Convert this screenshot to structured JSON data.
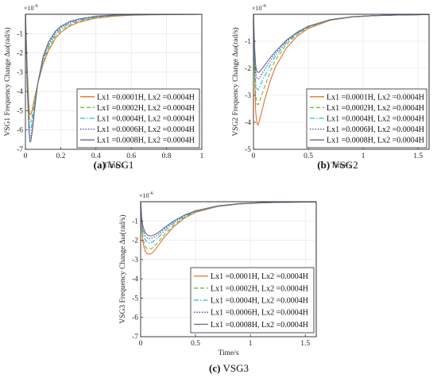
{
  "chart_data": [
    {
      "type": "line",
      "caption_letter": "(a)",
      "caption_text": "VSG1",
      "ylabel": "VSG1 Frequency Change Δω(rad/s)",
      "xlabel": "Time/s",
      "multiplier": "×10",
      "multiplier_exp": "-6",
      "xlim": [
        0,
        1
      ],
      "ylim": [
        -7,
        0
      ],
      "xticks": [
        "0",
        "0.2",
        "0.4",
        "0.6",
        "0.8",
        "1"
      ],
      "yticks": [
        "-1",
        "-2",
        "-3",
        "-4",
        "-5",
        "-6",
        "-7"
      ],
      "grid": true,
      "legend_position": "bottom-right",
      "series": [
        {
          "name": "Lx1 =0.0001H, Lx2 =0.0004H",
          "color": "#e8702a",
          "dash": "",
          "x": [
            0,
            0.01,
            0.02,
            0.025,
            0.03,
            0.04,
            0.05,
            0.07,
            0.1,
            0.13,
            0.17,
            0.2,
            0.25,
            0.3,
            0.4,
            0.5,
            0.6,
            0.7,
            0.8,
            1.0
          ],
          "y": [
            0,
            -2.7,
            -4.7,
            -5.2,
            -5.2,
            -4.9,
            -4.4,
            -3.6,
            -2.6,
            -1.9,
            -1.25,
            -0.95,
            -0.62,
            -0.42,
            -0.2,
            -0.1,
            -0.05,
            -0.03,
            -0.02,
            0
          ]
        },
        {
          "name": "Lx1 =0.0002H, Lx2 =0.0004H",
          "color": "#6fb83a",
          "dash": "5,3",
          "x": [
            0,
            0.01,
            0.02,
            0.025,
            0.03,
            0.04,
            0.05,
            0.07,
            0.1,
            0.13,
            0.17,
            0.2,
            0.25,
            0.3,
            0.4,
            0.5,
            0.6,
            0.7,
            0.8,
            1.0
          ],
          "y": [
            0,
            -3.0,
            -5.1,
            -5.6,
            -5.6,
            -5.2,
            -4.6,
            -3.6,
            -2.5,
            -1.8,
            -1.15,
            -0.85,
            -0.55,
            -0.37,
            -0.17,
            -0.08,
            -0.04,
            -0.02,
            -0.01,
            0
          ]
        },
        {
          "name": "Lx1 =0.0004H, Lx2 =0.0004H",
          "color": "#2bb6d6",
          "dash": "6,2,1.5,2",
          "x": [
            0,
            0.01,
            0.02,
            0.025,
            0.03,
            0.04,
            0.05,
            0.07,
            0.1,
            0.13,
            0.17,
            0.2,
            0.25,
            0.3,
            0.4,
            0.5,
            0.6,
            0.7,
            0.8,
            1.0
          ],
          "y": [
            0,
            -3.3,
            -5.5,
            -6.0,
            -6.0,
            -5.5,
            -4.8,
            -3.6,
            -2.4,
            -1.65,
            -1.05,
            -0.75,
            -0.48,
            -0.32,
            -0.14,
            -0.06,
            -0.03,
            -0.015,
            -0.01,
            0
          ]
        },
        {
          "name": "Lx1 =0.0006H, Lx2 =0.0004H",
          "color": "#3e3ea8",
          "dash": "1.5,1.8",
          "x": [
            0,
            0.01,
            0.02,
            0.025,
            0.03,
            0.04,
            0.05,
            0.07,
            0.1,
            0.13,
            0.17,
            0.2,
            0.25,
            0.3,
            0.4,
            0.5,
            0.6,
            0.7,
            0.8,
            1.0
          ],
          "y": [
            0,
            -3.5,
            -5.8,
            -6.4,
            -6.4,
            -5.8,
            -5.0,
            -3.6,
            -2.3,
            -1.55,
            -0.95,
            -0.68,
            -0.42,
            -0.28,
            -0.12,
            -0.05,
            -0.025,
            -0.012,
            -0.008,
            0
          ]
        },
        {
          "name": "Lx1 =0.0008H, Lx2 =0.0004H",
          "color": "#6a6a8a",
          "dash": "",
          "x": [
            0,
            0.01,
            0.02,
            0.025,
            0.03,
            0.04,
            0.05,
            0.07,
            0.1,
            0.13,
            0.17,
            0.2,
            0.25,
            0.3,
            0.4,
            0.5,
            0.6,
            0.7,
            0.8,
            1.0
          ],
          "y": [
            0,
            -3.7,
            -6.0,
            -6.6,
            -6.6,
            -6.0,
            -5.1,
            -3.6,
            -2.2,
            -1.45,
            -0.88,
            -0.62,
            -0.38,
            -0.25,
            -0.1,
            -0.04,
            -0.02,
            -0.01,
            -0.005,
            0
          ]
        }
      ]
    },
    {
      "type": "line",
      "caption_letter": "(b)",
      "caption_text": "VSG2",
      "ylabel": "VSG2 Frequency Change Δω(rad/s)",
      "xlabel": "Time/s",
      "multiplier": "×10",
      "multiplier_exp": "-6",
      "xlim": [
        0,
        1.6
      ],
      "ylim": [
        -5,
        0
      ],
      "xticks": [
        "0",
        "0.5",
        "1",
        "1.5"
      ],
      "yticks": [
        "-1",
        "-2",
        "-3",
        "-4",
        "-5"
      ],
      "grid": true,
      "legend_position": "bottom-right",
      "series": [
        {
          "name": "Lx1 =0.0001H, Lx2 =0.0004H",
          "color": "#e8702a",
          "dash": "",
          "x": [
            0,
            0.01,
            0.02,
            0.03,
            0.04,
            0.05,
            0.07,
            0.1,
            0.15,
            0.2,
            0.3,
            0.4,
            0.5,
            0.7,
            0.9,
            1.1,
            1.3,
            1.6
          ],
          "y": [
            0,
            -2.2,
            -3.6,
            -4.0,
            -4.1,
            -4.0,
            -3.7,
            -3.2,
            -2.5,
            -1.95,
            -1.25,
            -0.8,
            -0.52,
            -0.22,
            -0.1,
            -0.05,
            -0.03,
            -0.01
          ]
        },
        {
          "name": "Lx1 =0.0002H, Lx2 =0.0004H",
          "color": "#6fb83a",
          "dash": "5,3",
          "x": [
            0,
            0.01,
            0.02,
            0.03,
            0.04,
            0.05,
            0.07,
            0.1,
            0.15,
            0.2,
            0.3,
            0.4,
            0.5,
            0.7,
            0.9,
            1.1,
            1.3,
            1.6
          ],
          "y": [
            0,
            -1.9,
            -3.0,
            -3.3,
            -3.35,
            -3.3,
            -3.05,
            -2.7,
            -2.15,
            -1.7,
            -1.12,
            -0.74,
            -0.48,
            -0.21,
            -0.09,
            -0.05,
            -0.03,
            -0.01
          ]
        },
        {
          "name": "Lx1 =0.0004H, Lx2 =0.0004H",
          "color": "#2bb6d6",
          "dash": "6,2,1.5,2",
          "x": [
            0,
            0.01,
            0.02,
            0.03,
            0.04,
            0.05,
            0.07,
            0.1,
            0.15,
            0.2,
            0.3,
            0.4,
            0.5,
            0.7,
            0.9,
            1.1,
            1.3,
            1.6
          ],
          "y": [
            0,
            -1.6,
            -2.5,
            -2.75,
            -2.8,
            -2.75,
            -2.55,
            -2.3,
            -1.9,
            -1.55,
            -1.05,
            -0.7,
            -0.46,
            -0.2,
            -0.09,
            -0.05,
            -0.03,
            -0.01
          ]
        },
        {
          "name": "Lx1 =0.0006H, Lx2 =0.0004H",
          "color": "#3e3ea8",
          "dash": "1.5,1.8",
          "x": [
            0,
            0.01,
            0.02,
            0.03,
            0.04,
            0.05,
            0.07,
            0.1,
            0.15,
            0.2,
            0.3,
            0.4,
            0.5,
            0.7,
            0.9,
            1.1,
            1.3,
            1.6
          ],
          "y": [
            0,
            -1.4,
            -2.15,
            -2.35,
            -2.4,
            -2.38,
            -2.25,
            -2.05,
            -1.75,
            -1.45,
            -1.0,
            -0.68,
            -0.45,
            -0.2,
            -0.09,
            -0.05,
            -0.03,
            -0.01
          ]
        },
        {
          "name": "Lx1 =0.0008H, Lx2 =0.0004H",
          "color": "#6a6a8a",
          "dash": "",
          "x": [
            0,
            0.01,
            0.02,
            0.03,
            0.04,
            0.05,
            0.07,
            0.1,
            0.15,
            0.2,
            0.3,
            0.4,
            0.5,
            0.7,
            0.9,
            1.1,
            1.3,
            1.6
          ],
          "y": [
            0,
            -1.2,
            -1.9,
            -2.1,
            -2.15,
            -2.15,
            -2.05,
            -1.9,
            -1.62,
            -1.38,
            -0.96,
            -0.66,
            -0.44,
            -0.2,
            -0.09,
            -0.05,
            -0.03,
            -0.01
          ]
        }
      ]
    },
    {
      "type": "line",
      "caption_letter": "(c)",
      "caption_text": "VSG3",
      "ylabel": "VSG3 Frequency Change Δω(rad/s)",
      "xlabel": "Time/s",
      "multiplier": "×10",
      "multiplier_exp": "-6",
      "xlim": [
        0,
        1.6
      ],
      "ylim": [
        -7,
        0
      ],
      "xticks": [
        "0",
        "0.5",
        "1",
        "1.5"
      ],
      "yticks": [
        "-1",
        "-2",
        "-3",
        "-4",
        "-5",
        "-6",
        "-7"
      ],
      "grid": true,
      "legend_position": "bottom-right",
      "series": [
        {
          "name": "Lx1 =0.0001H, Lx2 =0.0004H",
          "color": "#e8702a",
          "dash": "",
          "x": [
            0,
            0.01,
            0.02,
            0.04,
            0.06,
            0.08,
            0.1,
            0.13,
            0.17,
            0.2,
            0.3,
            0.4,
            0.5,
            0.7,
            0.9,
            1.1,
            1.3,
            1.6
          ],
          "y": [
            0,
            -1.5,
            -2.1,
            -2.55,
            -2.7,
            -2.72,
            -2.68,
            -2.5,
            -2.2,
            -1.95,
            -1.3,
            -0.85,
            -0.55,
            -0.25,
            -0.12,
            -0.06,
            -0.03,
            -0.01
          ]
        },
        {
          "name": "Lx1 =0.0002H, Lx2 =0.0004H",
          "color": "#6fb83a",
          "dash": "5,3",
          "x": [
            0,
            0.01,
            0.02,
            0.04,
            0.06,
            0.08,
            0.1,
            0.13,
            0.17,
            0.2,
            0.3,
            0.4,
            0.5,
            0.7,
            0.9,
            1.1,
            1.3,
            1.6
          ],
          "y": [
            0,
            -1.35,
            -1.9,
            -2.3,
            -2.45,
            -2.47,
            -2.43,
            -2.28,
            -2.02,
            -1.8,
            -1.22,
            -0.8,
            -0.52,
            -0.24,
            -0.11,
            -0.05,
            -0.03,
            -0.01
          ]
        },
        {
          "name": "Lx1 =0.0004H, Lx2 =0.0004H",
          "color": "#2bb6d6",
          "dash": "6,2,1.5,2",
          "x": [
            0,
            0.01,
            0.02,
            0.04,
            0.06,
            0.08,
            0.1,
            0.13,
            0.17,
            0.2,
            0.3,
            0.4,
            0.5,
            0.7,
            0.9,
            1.1,
            1.3,
            1.6
          ],
          "y": [
            0,
            -1.1,
            -1.6,
            -1.95,
            -2.1,
            -2.15,
            -2.12,
            -2.0,
            -1.8,
            -1.62,
            -1.12,
            -0.75,
            -0.5,
            -0.23,
            -0.11,
            -0.05,
            -0.03,
            -0.01
          ]
        },
        {
          "name": "Lx1 =0.0006H, Lx2 =0.0004H",
          "color": "#3e3ea8",
          "dash": "1.5,1.8",
          "x": [
            0,
            0.01,
            0.02,
            0.04,
            0.06,
            0.08,
            0.1,
            0.13,
            0.17,
            0.2,
            0.3,
            0.4,
            0.5,
            0.7,
            0.9,
            1.1,
            1.3,
            1.6
          ],
          "y": [
            0,
            -0.95,
            -1.4,
            -1.75,
            -1.88,
            -1.92,
            -1.9,
            -1.82,
            -1.66,
            -1.5,
            -1.05,
            -0.72,
            -0.48,
            -0.22,
            -0.1,
            -0.05,
            -0.03,
            -0.01
          ]
        },
        {
          "name": "Lx1 =0.0008H, Lx2 =0.0004H",
          "color": "#6a6a8a",
          "dash": "",
          "x": [
            0,
            0.01,
            0.02,
            0.04,
            0.06,
            0.08,
            0.1,
            0.13,
            0.17,
            0.2,
            0.3,
            0.4,
            0.5,
            0.7,
            0.9,
            1.1,
            1.3,
            1.6
          ],
          "y": [
            0,
            -0.85,
            -1.25,
            -1.58,
            -1.72,
            -1.78,
            -1.77,
            -1.7,
            -1.56,
            -1.42,
            -1.0,
            -0.69,
            -0.47,
            -0.22,
            -0.1,
            -0.05,
            -0.03,
            -0.01
          ]
        }
      ]
    }
  ]
}
